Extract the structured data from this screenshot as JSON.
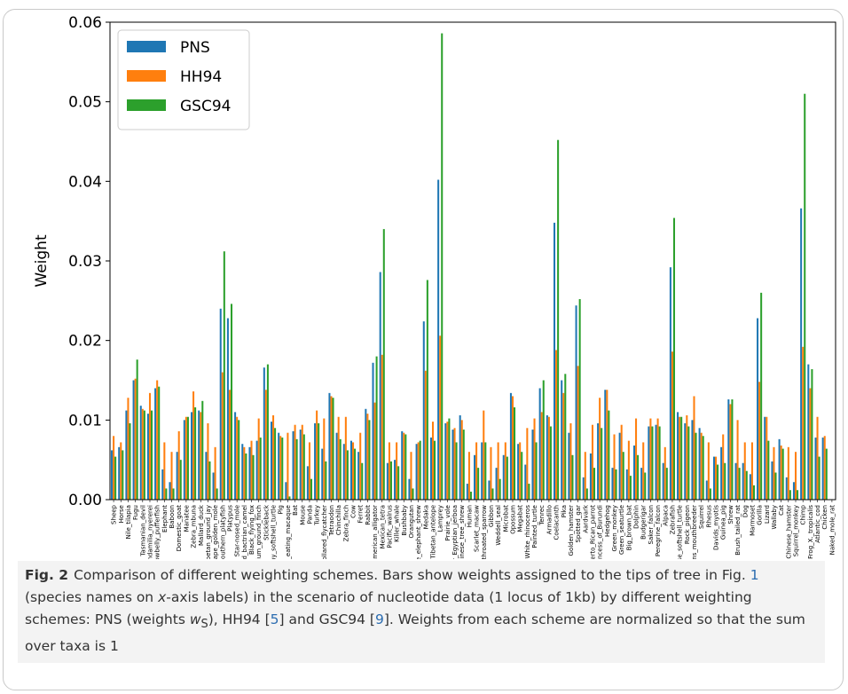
{
  "caption": {
    "label": "Fig. 2",
    "seg1": "Comparison of different weighting schemes. Bars show weights assigned to the tips of tree in Fig. ",
    "ref1": "1",
    "seg2": " (species names on ",
    "seg2_italic": "x",
    "seg3": "-axis labels) in the scenario of nucleotide data (1 locus of 1kb) by different weighting schemes: PNS (weights ",
    "seg3_italic": "w",
    "seg3_sub": "S",
    "seg4": "), HH94 [",
    "ref2": "5",
    "seg5": "] and GSC94 [",
    "ref3": "9",
    "seg6": "]. Weights from each scheme are normalized so that the sum over taxa is 1"
  },
  "chart_data": {
    "type": "bar",
    "ylabel": "Weight",
    "ylim": [
      0,
      0.06
    ],
    "yticks": [
      "0.00",
      "0.01",
      "0.02",
      "0.03",
      "0.04",
      "0.05",
      "0.06"
    ],
    "grid": false,
    "legend_position": "top-left",
    "colors": {
      "PNS": "#1f77b4",
      "HH94": "#ff7f0e",
      "GSC94": "#2ca02c"
    },
    "categories": [
      "Sheep",
      "Horse",
      "Nile_tilapia",
      "Fugu",
      "Tasmanian_devil",
      "Pundamilia_nyererei",
      "Yellowbelly_pufferfish",
      "Elephant",
      "Baboon",
      "Domestic_goat",
      "Manatee",
      "Zebra_mbuna",
      "Mallard_duck",
      "Tibetan_ground_jay",
      "Cape_golden_mole",
      "Southern_platyfish",
      "Platypus",
      "Star-nosed_mole",
      "Wild_bactrian_camel",
      "Black_flying_fox",
      "Medium_ground_finch",
      "Stickleback",
      "Spiny_softshell_turtle",
      "Pig",
      "Crab_eating_macaque",
      "Bat",
      "Mouse",
      "Panda",
      "Turkey",
      "Collared_flycatcher",
      "Tetraodon",
      "Chinchilla",
      "Zebra_finch",
      "Cow",
      "Ferret",
      "Rabbit",
      "American_alligator",
      "Mexican_tetra",
      "Pacific_walrus",
      "Killer_whale",
      "Bushbaby",
      "Orangutan",
      "Cape_elephant_shrew",
      "Medaka",
      "Tibetan_antelope",
      "Lamprey",
      "Prairie_vole",
      "Lesser_Egyptian_jerboa",
      "Chinese_tree_shrew",
      "Human",
      "Scarlet_macaw",
      "White_throated_sparrow",
      "Gibbon",
      "Weddell_seal",
      "Microbat",
      "Opossum",
      "Megabat",
      "White_rhinoceros",
      "Painted_turtle",
      "Tenrec",
      "Armadillo",
      "Coelacanth",
      "Pika",
      "Golden_hamster",
      "Spotted_gar",
      "Aardvark",
      "Puerto_Rican_parrot",
      "Princess_of_Burundi",
      "Hedgehog",
      "Green_monkey",
      "Green_seaturtle",
      "Big_brown_bat",
      "Dolphin",
      "Budgerigar",
      "Saker_falcon",
      "Peregrine_falcon",
      "Alpaca",
      "Zebrafish",
      "Chinese_softshell_turtle",
      "Rock_pigeon",
      "Burtons_mouthbreeder",
      "Squirrel",
      "Rhesus",
      "Davids_myotis",
      "Guinea_pig",
      "Shrew",
      "Brush_tailed_rat",
      "Dog",
      "Marmoset",
      "Gorilla",
      "Lizard",
      "Wallaby",
      "Cat",
      "Chinese_hamster",
      "Squirrel_monkey",
      "Chimp",
      "Frog_X._tropicalis",
      "Atlantic_cod",
      "Chicken",
      "Naked_mole_rat"
    ],
    "series": [
      {
        "name": "PNS",
        "values": [
          0.0062,
          0.0066,
          0.0112,
          0.015,
          0.0118,
          0.0108,
          0.014,
          0.0038,
          0.0022,
          0.006,
          0.01,
          0.011,
          0.0112,
          0.006,
          0.0034,
          0.024,
          0.0228,
          0.011,
          0.007,
          0.0066,
          0.0074,
          0.0166,
          0.0098,
          0.0084,
          0.0022,
          0.0086,
          0.0088,
          0.0042,
          0.0096,
          0.0064,
          0.0134,
          0.0084,
          0.007,
          0.0074,
          0.006,
          0.0114,
          0.0172,
          0.0286,
          0.0046,
          0.005,
          0.0086,
          0.0026,
          0.007,
          0.0224,
          0.0078,
          0.0402,
          0.0096,
          0.0088,
          0.0106,
          0.002,
          0.0056,
          0.0072,
          0.0024,
          0.004,
          0.0056,
          0.0134,
          0.007,
          0.0044,
          0.0088,
          0.014,
          0.0106,
          0.0348,
          0.015,
          0.0084,
          0.0244,
          0.0028,
          0.0058,
          0.0096,
          0.0138,
          0.004,
          0.0084,
          0.0038,
          0.0068,
          0.004,
          0.0092,
          0.0094,
          0.0046,
          0.0292,
          0.011,
          0.0096,
          0.01,
          0.009,
          0.0024,
          0.0054,
          0.0066,
          0.0126,
          0.0046,
          0.0046,
          0.0032,
          0.0228,
          0.0104,
          0.0048,
          0.0076,
          0.0028,
          0.0022,
          0.0366,
          0.017,
          0.0078,
          0.0078,
          0.0
        ]
      },
      {
        "name": "HH94",
        "values": [
          0.008,
          0.0072,
          0.0128,
          0.0152,
          0.0114,
          0.0134,
          0.015,
          0.0072,
          0.006,
          0.0086,
          0.0104,
          0.0136,
          0.011,
          0.0096,
          0.0066,
          0.016,
          0.0138,
          0.0104,
          0.0066,
          0.0074,
          0.0102,
          0.0138,
          0.0106,
          0.008,
          0.0084,
          0.0094,
          0.0094,
          0.0072,
          0.0112,
          0.0102,
          0.013,
          0.0104,
          0.0104,
          0.0072,
          0.0084,
          0.0108,
          0.0122,
          0.0182,
          0.0072,
          0.0072,
          0.0084,
          0.006,
          0.0072,
          0.0162,
          0.0098,
          0.0206,
          0.0098,
          0.009,
          0.01,
          0.006,
          0.0072,
          0.0112,
          0.0066,
          0.0072,
          0.0072,
          0.013,
          0.0072,
          0.009,
          0.0102,
          0.011,
          0.0104,
          0.0188,
          0.0134,
          0.0096,
          0.0168,
          0.006,
          0.0094,
          0.0128,
          0.0138,
          0.0082,
          0.0094,
          0.0074,
          0.0102,
          0.0072,
          0.0102,
          0.0102,
          0.0066,
          0.0186,
          0.0104,
          0.0106,
          0.013,
          0.0084,
          0.0072,
          0.0054,
          0.0082,
          0.012,
          0.01,
          0.0072,
          0.0072,
          0.0148,
          0.0104,
          0.0066,
          0.0068,
          0.0066,
          0.006,
          0.0192,
          0.014,
          0.0104,
          0.008,
          0.0
        ]
      },
      {
        "name": "GSC94",
        "values": [
          0.0054,
          0.0062,
          0.0096,
          0.0176,
          0.0112,
          0.0112,
          0.0142,
          0.0014,
          0.0014,
          0.005,
          0.0104,
          0.0116,
          0.0124,
          0.0048,
          0.0014,
          0.0312,
          0.0246,
          0.01,
          0.0058,
          0.0056,
          0.0078,
          0.017,
          0.009,
          0.0078,
          0.0004,
          0.0076,
          0.0082,
          0.0026,
          0.0096,
          0.0048,
          0.0128,
          0.0076,
          0.0062,
          0.0064,
          0.0046,
          0.01,
          0.018,
          0.034,
          0.0048,
          0.0042,
          0.0082,
          0.0014,
          0.0074,
          0.0276,
          0.0074,
          0.0586,
          0.0102,
          0.0072,
          0.0088,
          0.001,
          0.004,
          0.0072,
          0.0014,
          0.0026,
          0.0054,
          0.0116,
          0.006,
          0.002,
          0.0072,
          0.015,
          0.0092,
          0.0452,
          0.0158,
          0.0056,
          0.0252,
          0.0014,
          0.004,
          0.009,
          0.0112,
          0.0038,
          0.006,
          0.003,
          0.0056,
          0.0034,
          0.0092,
          0.0092,
          0.004,
          0.0354,
          0.0104,
          0.0092,
          0.0084,
          0.008,
          0.0014,
          0.0044,
          0.0046,
          0.0126,
          0.004,
          0.0036,
          0.0018,
          0.026,
          0.0074,
          0.0034,
          0.0064,
          0.0012,
          0.0012,
          0.051,
          0.0164,
          0.0054,
          0.0064,
          0.0
        ]
      }
    ]
  }
}
